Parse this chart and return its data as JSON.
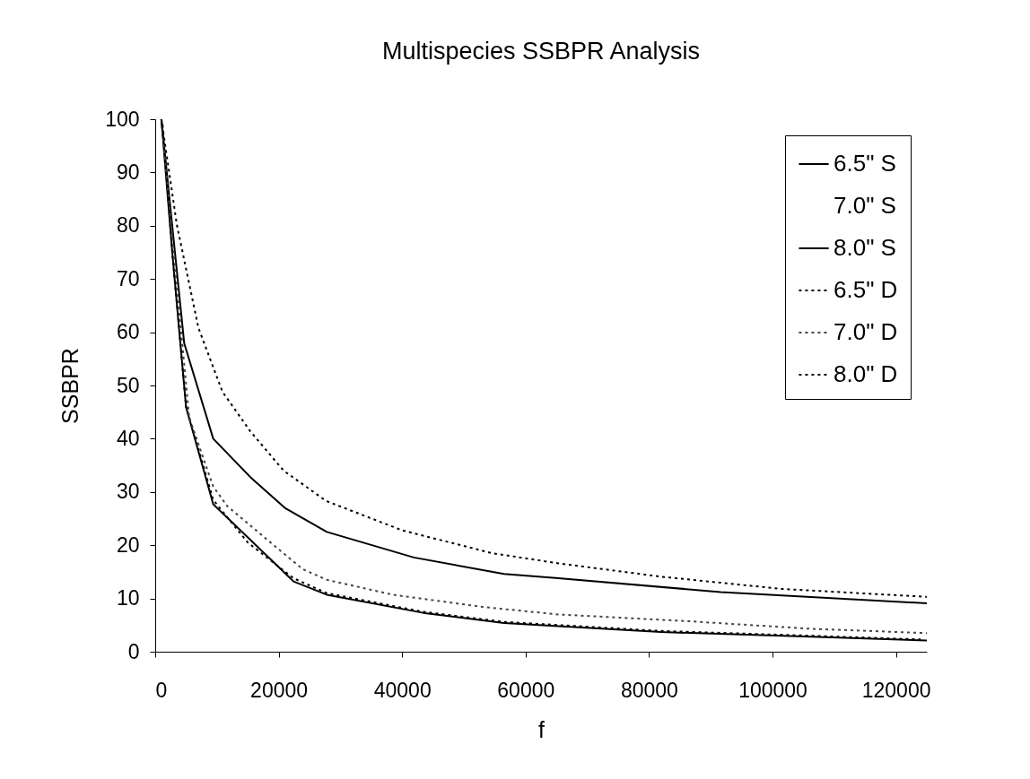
{
  "chart_data": {
    "type": "line",
    "title": "Multispecies SSBPR Analysis",
    "xlabel": "f",
    "ylabel": "SSBPR",
    "xlim": [
      0,
      125000
    ],
    "xticks": [
      0,
      20000,
      40000,
      60000,
      80000,
      100000,
      120000
    ],
    "ylim": [
      0,
      100
    ],
    "yticks": [
      0,
      10,
      20,
      30,
      40,
      50,
      60,
      70,
      80,
      90,
      100
    ],
    "grid": false,
    "legend": "top right",
    "marker": "none",
    "series": [
      {
        "name": "6.5\" S",
        "color": "#000000",
        "line_style": "solid",
        "x": [
          1000,
          2800,
          5000,
          9400,
          22400,
          27800,
          43400,
          56500,
          65300,
          81900,
          106200,
          125000
        ],
        "values": [
          100,
          74.5,
          45.9,
          27.7,
          13.2,
          10.7,
          7.3,
          5.4,
          4.8,
          3.7,
          2.8,
          2.1
        ]
      },
      {
        "name": "7.0\" S",
        "line_style": "none"
      },
      {
        "name": "8.0\" S",
        "color": "#000000",
        "line_style": "solid",
        "x": [
          1000,
          4700,
          9400,
          15400,
          21000,
          27800,
          41900,
          56500,
          65300,
          91600,
          125000
        ],
        "values": [
          100,
          57.9,
          40,
          32.8,
          27,
          22.5,
          17.7,
          14.6,
          13.8,
          11.2,
          9.1
        ]
      },
      {
        "name": "6.5\" D",
        "color": "#000000",
        "line_style": "dotted",
        "x": [
          1200,
          2800,
          5000,
          9400,
          15000,
          22400,
          27800,
          43400,
          56500,
          81900,
          106200,
          124000
        ],
        "values": [
          99,
          74.5,
          46,
          28.5,
          20.5,
          13.8,
          11,
          7.5,
          5.6,
          3.9,
          3,
          2.3
        ]
      },
      {
        "name": "7.0\" D",
        "color": "#444444",
        "line_style": "dotted",
        "x": [
          1000,
          3000,
          5500,
          9400,
          11700,
          19000,
          23900,
          27800,
          38500,
          53100,
          65300,
          86800,
          106200,
          125000
        ],
        "values": [
          100,
          75,
          44,
          31,
          27.3,
          20.2,
          15.5,
          13.5,
          10.7,
          8.4,
          7,
          5.7,
          4.3,
          3.5
        ]
      },
      {
        "name": "8.0\" D",
        "color": "#000000",
        "line_style": "dotted",
        "x": [
          1000,
          3500,
          7000,
          10900,
          15400,
          20800,
          27700,
          40000,
          54600,
          65300,
          81900,
          101400,
          125000
        ],
        "values": [
          100,
          80.2,
          60.8,
          48.8,
          41.4,
          34,
          28.3,
          22.8,
          18.5,
          16.6,
          14.1,
          11.8,
          10.3
        ]
      }
    ]
  }
}
